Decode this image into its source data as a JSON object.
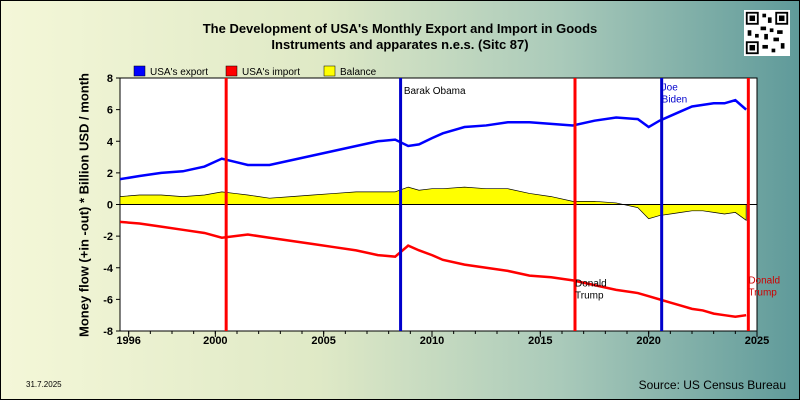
{
  "title_lines": [
    "The Development of USA's Monthly Export and Import in Goods",
    "Instruments and apparates n.e.s. (Sitc 87)"
  ],
  "date_stamp": "31.7.2025",
  "source": "Source: US Census Bureau",
  "icons": {
    "qr": "qr-code-icon"
  },
  "colors": {
    "export": "#0000ff",
    "import": "#ff0000",
    "balance": "#ffff00",
    "plot_bg": "#ffffff",
    "obama_line": "#0000cc",
    "trump_line": "#ff0000",
    "biden_line": "#0000cc"
  },
  "chart_data": {
    "type": "line",
    "title": "The Development of USA's Monthly Export and Import in Goods Instruments and apparates n.e.s. (Sitc 87)",
    "xlabel": "",
    "ylabel": "Money flow (+in -out) * Billion USD / month",
    "xlim": [
      1995.6,
      2025.0
    ],
    "ylim": [
      -8,
      8
    ],
    "x_ticks": [
      {
        "value": 1996,
        "label": "1996"
      },
      {
        "value": 2000,
        "label": "2000"
      },
      {
        "value": 2005,
        "label": "2005"
      },
      {
        "value": 2010,
        "label": "2010"
      },
      {
        "value": 2015,
        "label": "2015"
      },
      {
        "value": 2020,
        "label": "2020"
      },
      {
        "value": 2025,
        "label": "2025"
      }
    ],
    "y_ticks": [
      -8,
      -6,
      -4,
      -2,
      0,
      2,
      4,
      6,
      8
    ],
    "grid": false,
    "legend_position": "top-left",
    "legend": [
      {
        "label": "USA's export",
        "color": "#0000ff"
      },
      {
        "label": "USA's import",
        "color": "#ff0000"
      },
      {
        "label": "Balance",
        "color": "#ffff00"
      }
    ],
    "series": [
      {
        "name": "USA's export",
        "color": "#0000ff",
        "x": [
          1995.6,
          1996.5,
          1997.5,
          1998.5,
          1999.5,
          2000.3,
          2000.9,
          2001.5,
          2002.5,
          2003.5,
          2004.5,
          2005.5,
          2006.5,
          2007.5,
          2008.3,
          2008.9,
          2009.4,
          2010.0,
          2010.5,
          2011.5,
          2012.5,
          2013.5,
          2014.5,
          2015.5,
          2016.5,
          2017.5,
          2018.5,
          2019.5,
          2020.0,
          2020.5,
          2021.0,
          2021.5,
          2022.0,
          2022.5,
          2023.0,
          2023.5,
          2024.0,
          2024.5
        ],
        "y": [
          1.6,
          1.8,
          2.0,
          2.1,
          2.4,
          2.9,
          2.7,
          2.5,
          2.5,
          2.8,
          3.1,
          3.4,
          3.7,
          4.0,
          4.1,
          3.7,
          3.8,
          4.2,
          4.5,
          4.9,
          5.0,
          5.2,
          5.2,
          5.1,
          5.0,
          5.3,
          5.5,
          5.4,
          4.9,
          5.3,
          5.6,
          5.9,
          6.2,
          6.3,
          6.4,
          6.4,
          6.6,
          6.0
        ]
      },
      {
        "name": "USA's import",
        "color": "#ff0000",
        "x": [
          1995.6,
          1996.5,
          1997.5,
          1998.5,
          1999.5,
          2000.3,
          2000.9,
          2001.5,
          2002.5,
          2003.5,
          2004.5,
          2005.5,
          2006.5,
          2007.5,
          2008.3,
          2008.9,
          2009.4,
          2010.0,
          2010.5,
          2011.5,
          2012.5,
          2013.5,
          2014.5,
          2015.5,
          2016.5,
          2017.5,
          2018.5,
          2019.5,
          2020.0,
          2020.5,
          2021.0,
          2021.5,
          2022.0,
          2022.5,
          2023.0,
          2023.5,
          2024.0,
          2024.5
        ],
        "y": [
          -1.1,
          -1.2,
          -1.4,
          -1.6,
          -1.8,
          -2.1,
          -2.0,
          -1.9,
          -2.1,
          -2.3,
          -2.5,
          -2.7,
          -2.9,
          -3.2,
          -3.3,
          -2.6,
          -2.9,
          -3.2,
          -3.5,
          -3.8,
          -4.0,
          -4.2,
          -4.5,
          -4.6,
          -4.8,
          -5.1,
          -5.4,
          -5.6,
          -5.8,
          -6.0,
          -6.2,
          -6.4,
          -6.6,
          -6.7,
          -6.9,
          -7.0,
          -7.1,
          -7.0
        ]
      },
      {
        "name": "Balance",
        "color": "#ffff00",
        "x": [
          1995.6,
          1996.5,
          1997.5,
          1998.5,
          1999.5,
          2000.3,
          2000.9,
          2001.5,
          2002.5,
          2003.5,
          2004.5,
          2005.5,
          2006.5,
          2007.5,
          2008.3,
          2008.9,
          2009.4,
          2010.0,
          2010.5,
          2011.5,
          2012.5,
          2013.5,
          2014.5,
          2015.5,
          2016.5,
          2017.5,
          2018.5,
          2019.5,
          2020.0,
          2020.5,
          2021.0,
          2021.5,
          2022.0,
          2022.5,
          2023.0,
          2023.5,
          2024.0,
          2024.5
        ],
        "y": [
          0.5,
          0.6,
          0.6,
          0.5,
          0.6,
          0.8,
          0.7,
          0.6,
          0.4,
          0.5,
          0.6,
          0.7,
          0.8,
          0.8,
          0.8,
          1.1,
          0.9,
          1.0,
          1.0,
          1.1,
          1.0,
          1.0,
          0.7,
          0.5,
          0.2,
          0.2,
          0.1,
          -0.2,
          -0.9,
          -0.7,
          -0.6,
          -0.5,
          -0.4,
          -0.4,
          -0.5,
          -0.6,
          -0.5,
          -1.0
        ]
      }
    ],
    "annotations": [
      {
        "x": 2008.55,
        "color": "#0000cc",
        "lines": [
          "Barak Obama"
        ],
        "label_x": 2008.7,
        "label_y": 7.0
      },
      {
        "x": 2016.6,
        "color": "#ff0000",
        "lines": [
          "Donald",
          "Trump"
        ],
        "label_x": 2016.6,
        "label_y": -5.2
      },
      {
        "x": 2020.6,
        "color": "#0000cc",
        "lines": [
          "Joe",
          "Biden"
        ],
        "label_x": 2020.6,
        "label_y": 7.2
      },
      {
        "x": 2024.6,
        "color": "#ff0000",
        "lines": [
          "Donald",
          "Trump"
        ],
        "label_x": 2024.6,
        "label_y": -5.0
      }
    ],
    "extra_vlines": [
      {
        "x": 2000.5,
        "color": "#ff0000"
      }
    ]
  }
}
